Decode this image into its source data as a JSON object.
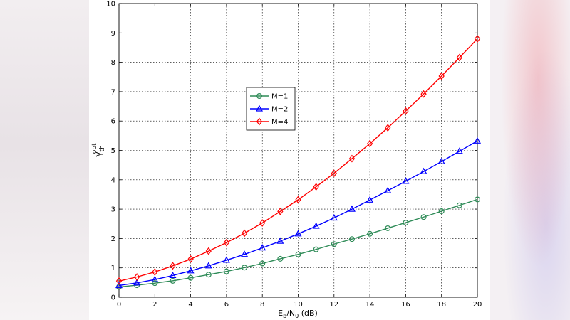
{
  "chart_data": {
    "type": "line",
    "title": "",
    "xlabel": "E_b/N_0 (dB)",
    "xlabel_parts": {
      "main": "E",
      "sub1": "b",
      "mid": "/N",
      "sub2": "0",
      "tail": " (dB)"
    },
    "ylabel_parts": {
      "main": "γ",
      "sub": "th",
      "sup": "opt"
    },
    "xlim": [
      0,
      20
    ],
    "ylim": [
      0,
      10
    ],
    "xticks": [
      0,
      2,
      4,
      6,
      8,
      10,
      12,
      14,
      16,
      18,
      20
    ],
    "yticks": [
      0,
      1,
      2,
      3,
      4,
      5,
      6,
      7,
      8,
      9,
      10
    ],
    "grid": true,
    "legend_position": "center-left",
    "x": [
      0,
      1,
      2,
      3,
      4,
      5,
      6,
      7,
      8,
      9,
      10,
      11,
      12,
      13,
      14,
      15,
      16,
      17,
      18,
      19,
      20
    ],
    "series": [
      {
        "name": "M=1",
        "color": "#2e8b57",
        "marker": "circle",
        "values": [
          0.35,
          0.41,
          0.48,
          0.56,
          0.66,
          0.77,
          0.88,
          1.01,
          1.15,
          1.31,
          1.46,
          1.63,
          1.81,
          1.98,
          2.16,
          2.35,
          2.54,
          2.73,
          2.93,
          3.13,
          3.33
        ]
      },
      {
        "name": "M=2",
        "color": "#0000ff",
        "marker": "triangle",
        "values": [
          0.4,
          0.49,
          0.6,
          0.74,
          0.9,
          1.07,
          1.26,
          1.46,
          1.68,
          1.91,
          2.16,
          2.42,
          2.7,
          3.0,
          3.31,
          3.63,
          3.95,
          4.28,
          4.62,
          4.97,
          5.32
        ]
      },
      {
        "name": "M=4",
        "color": "#ff0000",
        "marker": "diamond",
        "values": [
          0.55,
          0.69,
          0.86,
          1.07,
          1.3,
          1.57,
          1.86,
          2.18,
          2.53,
          2.92,
          3.32,
          3.76,
          4.22,
          4.72,
          5.23,
          5.77,
          6.34,
          6.92,
          7.53,
          8.16,
          8.8
        ]
      }
    ]
  }
}
